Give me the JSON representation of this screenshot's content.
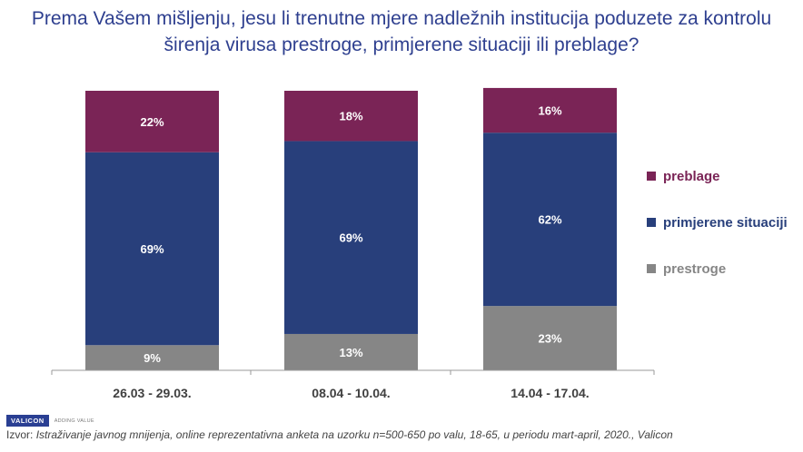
{
  "title": "Prema Vašem mišljenju, jesu li trenutne mjere nadležnih institucija poduzete za kontrolu širenja virusa prestroge, primjerene situaciji ili preblage?",
  "chart_data": {
    "type": "bar",
    "stacked": true,
    "percent_stacked": true,
    "categories": [
      "26.03 - 29.03.",
      "08.04 - 10.04.",
      "14.04 - 17.04."
    ],
    "series": [
      {
        "name": "prestroge",
        "values": [
          9,
          13,
          23
        ],
        "color": "#868686",
        "label_color": "#ffffff"
      },
      {
        "name": "primjerene situaciji",
        "values": [
          69,
          69,
          62
        ],
        "color": "#283f7b",
        "label_color": "#ffffff"
      },
      {
        "name": "preblage",
        "values": [
          22,
          18,
          16
        ],
        "color": "#7a2456",
        "label_color": "#ffffff"
      }
    ],
    "data_labels": [
      [
        "9%",
        "13%",
        "23%"
      ],
      [
        "69%",
        "69%",
        "62%"
      ],
      [
        "22%",
        "18%",
        "16%"
      ]
    ],
    "legend": {
      "position": "right",
      "items": [
        {
          "label": "preblage",
          "color": "#7a2456"
        },
        {
          "label": "primjerene situaciji",
          "color": "#283f7b"
        },
        {
          "label": "prestroge",
          "color": "#868686"
        }
      ]
    },
    "grid": false,
    "ylim": [
      0,
      100
    ]
  },
  "logo": {
    "name": "VALICON",
    "tagline": "ADDING VALUE"
  },
  "source": {
    "prefix": "Izvor:",
    "text": "Istraživanje javnog mnijenja, online reprezentativna anketa na uzorku n=500-650 po valu, 18-65, u periodu mart-april, 2020., Valicon"
  }
}
